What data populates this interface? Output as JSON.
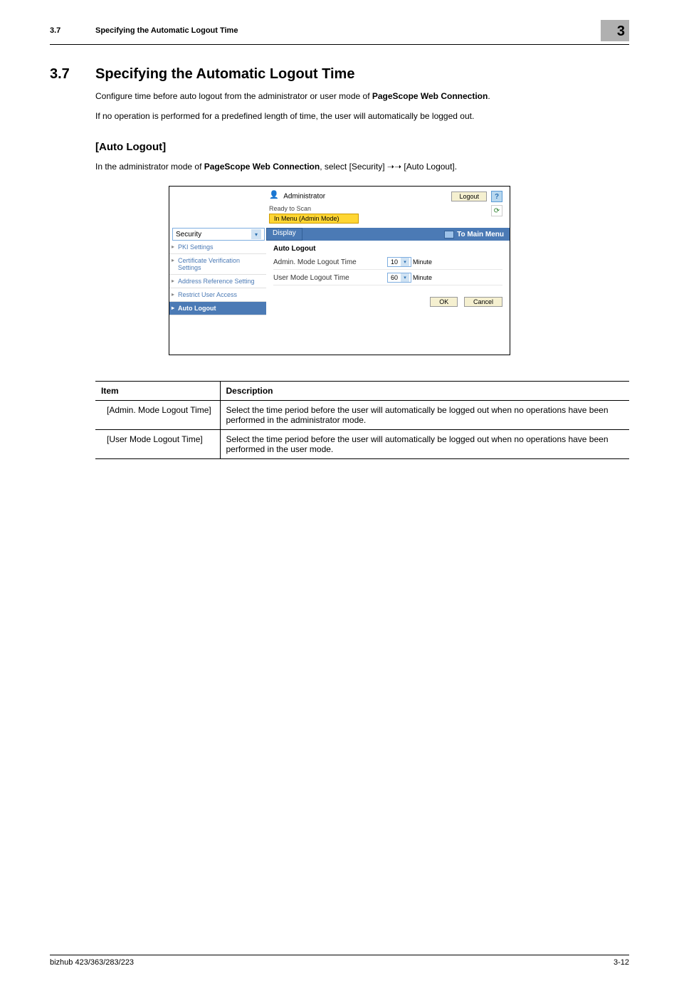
{
  "header": {
    "section_number": "3.7",
    "section_title_running": "Specifying the Automatic Logout Time",
    "chapter_number": "3"
  },
  "heading": {
    "number": "3.7",
    "title": "Specifying the Automatic Logout Time"
  },
  "intro": {
    "p1_prefix": "Configure time before auto logout from the administrator or user mode of ",
    "p1_bold": "PageScope Web Connection",
    "p1_suffix": ".",
    "p2": "If no operation is performed for a predefined length of time, the user will automatically be logged out."
  },
  "sub_heading": "[Auto Logout]",
  "sub_text": {
    "prefix": "In the administrator mode of ",
    "bold": "PageScope Web Connection",
    "suffix": ", select [Security] ➝➝ [Auto Logout]."
  },
  "screenshot": {
    "topbar": {
      "administrator": "Administrator",
      "logout": "Logout",
      "help": "?"
    },
    "status": {
      "ready": "Ready to Scan",
      "menu_chip": "In Menu (Admin Mode)",
      "refresh_glyph": "⟳"
    },
    "navrow": {
      "security": "Security",
      "chev": "▾",
      "display": "Display",
      "to_main_menu": "To Main Menu"
    },
    "sidebar": {
      "items": [
        {
          "label": "PKI Settings",
          "active": false
        },
        {
          "label": "Certificate Verification Settings",
          "active": false
        },
        {
          "label": "Address Reference Setting",
          "active": false
        },
        {
          "label": "Restrict User Access",
          "active": false
        },
        {
          "label": "Auto Logout",
          "active": true
        }
      ]
    },
    "main": {
      "panel_title": "Auto Logout",
      "rows": [
        {
          "label": "Admin. Mode Logout Time",
          "value": "10",
          "unit": "Minute"
        },
        {
          "label": "User Mode Logout Time",
          "value": "60",
          "unit": "Minute"
        }
      ],
      "ok": "OK",
      "cancel": "Cancel"
    }
  },
  "table": {
    "headers": {
      "item": "Item",
      "description": "Description"
    },
    "rows": [
      {
        "item": "[Admin. Mode Logout Time]",
        "desc": "Select the time period before the user will automatically be logged out when no operations have been performed in the administrator mode."
      },
      {
        "item": "[User Mode Logout Time]",
        "desc": "Select the time period before the user will automatically be logged out when no operations have been performed in the user mode."
      }
    ]
  },
  "footer": {
    "left": "bizhub 423/363/283/223",
    "right": "3-12"
  },
  "colors": {
    "chapter_bg": "#b0b0b0",
    "nav_blue": "#4b7ab5",
    "chip_yellow": "#ffd633",
    "btn_cream": "#f5f0d0",
    "help_bg": "#b7d7ef"
  }
}
